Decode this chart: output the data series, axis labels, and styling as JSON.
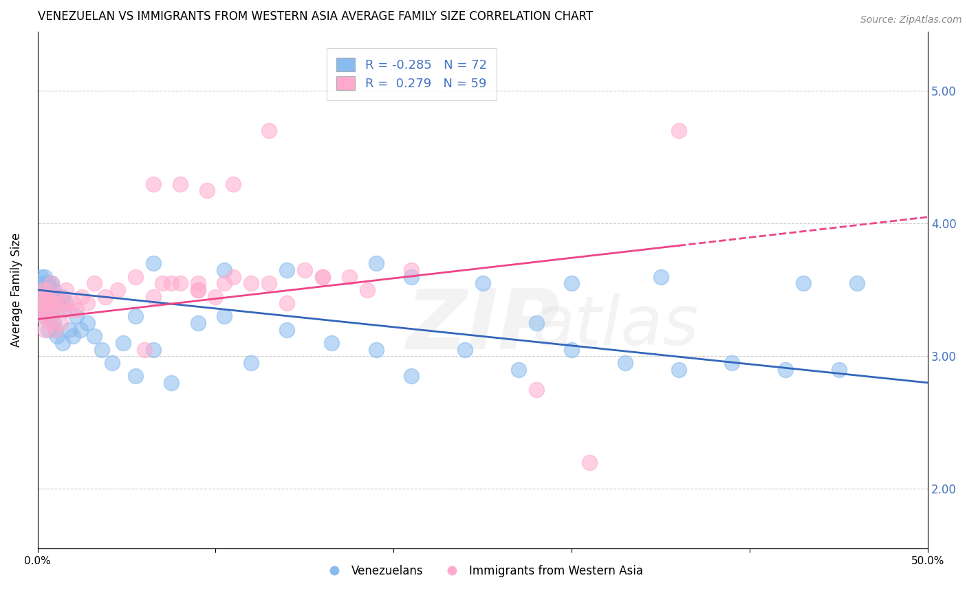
{
  "title": "VENEZUELAN VS IMMIGRANTS FROM WESTERN ASIA AVERAGE FAMILY SIZE CORRELATION CHART",
  "source": "Source: ZipAtlas.com",
  "ylabel": "Average Family Size",
  "yticks": [
    2.0,
    3.0,
    4.0,
    5.0
  ],
  "xlim": [
    0.0,
    0.5
  ],
  "ylim": [
    1.55,
    5.45
  ],
  "legend_r1": "R = -0.285",
  "legend_n1": "N = 72",
  "legend_r2": "R =  0.279",
  "legend_n2": "N = 59",
  "blue_color": "#88bbee",
  "pink_color": "#ffaacc",
  "blue_line_color": "#3366bb",
  "pink_line_color": "#ee4488",
  "blue_scatter_x": [
    0.001,
    0.002,
    0.002,
    0.003,
    0.003,
    0.003,
    0.004,
    0.004,
    0.004,
    0.005,
    0.005,
    0.005,
    0.006,
    0.006,
    0.006,
    0.007,
    0.007,
    0.007,
    0.008,
    0.008,
    0.008,
    0.009,
    0.009,
    0.01,
    0.01,
    0.011,
    0.011,
    0.012,
    0.013,
    0.014,
    0.014,
    0.015,
    0.016,
    0.018,
    0.02,
    0.022,
    0.024,
    0.028,
    0.032,
    0.036,
    0.042,
    0.048,
    0.055,
    0.065,
    0.075,
    0.09,
    0.105,
    0.12,
    0.14,
    0.165,
    0.19,
    0.21,
    0.24,
    0.27,
    0.3,
    0.33,
    0.36,
    0.39,
    0.42,
    0.45,
    0.3,
    0.35,
    0.055,
    0.065,
    0.105,
    0.14,
    0.19,
    0.21,
    0.25,
    0.28,
    0.43,
    0.46
  ],
  "blue_scatter_y": [
    3.5,
    3.6,
    3.4,
    3.55,
    3.35,
    3.45,
    3.5,
    3.3,
    3.6,
    3.45,
    3.55,
    3.35,
    3.4,
    3.2,
    3.55,
    3.45,
    3.3,
    3.5,
    3.55,
    3.35,
    3.4,
    3.25,
    3.5,
    3.45,
    3.2,
    3.45,
    3.15,
    3.4,
    3.4,
    3.45,
    3.1,
    3.35,
    3.4,
    3.2,
    3.15,
    3.3,
    3.2,
    3.25,
    3.15,
    3.05,
    2.95,
    3.1,
    3.3,
    3.05,
    2.8,
    3.25,
    3.3,
    2.95,
    3.2,
    3.1,
    3.05,
    2.85,
    3.05,
    2.9,
    3.05,
    2.95,
    2.9,
    2.95,
    2.9,
    2.9,
    3.55,
    3.6,
    2.85,
    3.7,
    3.65,
    3.65,
    3.7,
    3.6,
    3.55,
    3.25,
    3.55,
    3.55
  ],
  "pink_scatter_x": [
    0.001,
    0.002,
    0.002,
    0.003,
    0.003,
    0.004,
    0.004,
    0.005,
    0.005,
    0.006,
    0.006,
    0.007,
    0.008,
    0.008,
    0.009,
    0.01,
    0.01,
    0.011,
    0.012,
    0.013,
    0.014,
    0.016,
    0.018,
    0.02,
    0.022,
    0.025,
    0.028,
    0.032,
    0.038,
    0.045,
    0.055,
    0.065,
    0.075,
    0.09,
    0.105,
    0.12,
    0.14,
    0.16,
    0.185,
    0.06,
    0.07,
    0.08,
    0.09,
    0.1,
    0.15,
    0.175,
    0.065,
    0.08,
    0.095,
    0.11,
    0.13,
    0.16,
    0.09,
    0.11,
    0.13,
    0.21,
    0.28,
    0.31,
    0.36
  ],
  "pink_scatter_y": [
    3.4,
    3.5,
    3.35,
    3.3,
    3.45,
    3.4,
    3.2,
    3.35,
    3.5,
    3.3,
    3.45,
    3.25,
    3.4,
    3.55,
    3.35,
    3.4,
    3.2,
    3.45,
    3.35,
    3.25,
    3.4,
    3.5,
    3.35,
    3.4,
    3.35,
    3.45,
    3.4,
    3.55,
    3.45,
    3.5,
    3.6,
    3.45,
    3.55,
    3.5,
    3.55,
    3.55,
    3.4,
    3.6,
    3.5,
    3.05,
    3.55,
    3.55,
    3.5,
    3.45,
    3.65,
    3.6,
    4.3,
    4.3,
    4.25,
    4.3,
    4.7,
    3.6,
    3.55,
    3.6,
    3.55,
    3.65,
    2.75,
    2.2,
    4.7
  ]
}
